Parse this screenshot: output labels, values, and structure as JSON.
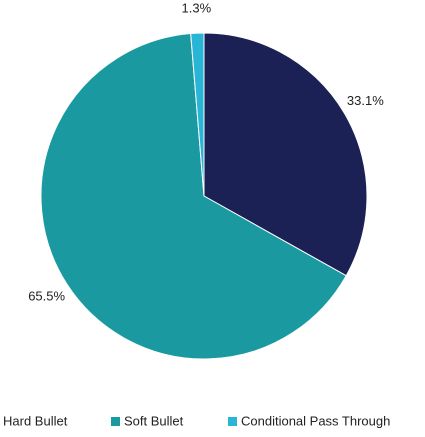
{
  "chart_data": {
    "type": "pie",
    "categories": [
      "Hard Bullet",
      "Soft Bullet",
      "Conditional Pass Through"
    ],
    "values": [
      33.1,
      65.5,
      1.3
    ],
    "value_labels": [
      "33.1%",
      "65.5%",
      "1.3%"
    ],
    "colors": [
      "#1b2154",
      "#1a9aa0",
      "#29b5d6"
    ],
    "legend": "bottom"
  }
}
